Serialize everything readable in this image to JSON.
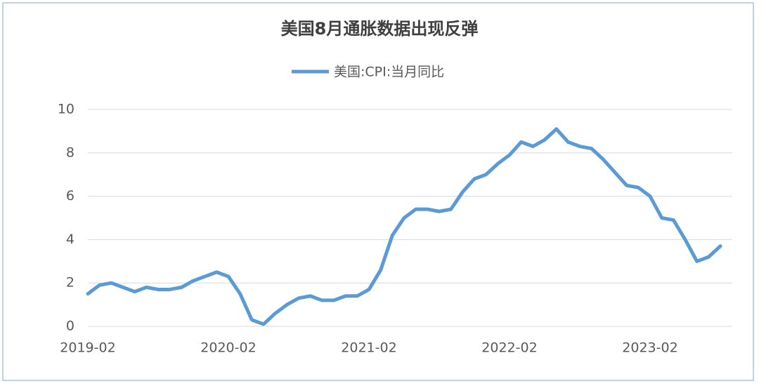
{
  "chart_data": {
    "type": "line",
    "title": "美国8月通胀数据出现反弹",
    "categories": [
      "2019-02",
      null,
      null,
      null,
      null,
      null,
      null,
      null,
      null,
      null,
      null,
      null,
      "2020-02",
      null,
      null,
      null,
      null,
      null,
      null,
      null,
      null,
      null,
      null,
      null,
      "2021-02",
      null,
      null,
      null,
      null,
      null,
      null,
      null,
      null,
      null,
      null,
      null,
      "2022-02",
      null,
      null,
      null,
      null,
      null,
      null,
      null,
      null,
      null,
      null,
      null,
      "2023-02",
      null,
      null,
      null,
      null,
      null,
      null
    ],
    "series": [
      {
        "name": "美国:CPI:当月同比",
        "color": "#5b9bd5",
        "values": [
          1.5,
          1.9,
          2.0,
          1.8,
          1.6,
          1.8,
          1.7,
          1.7,
          1.8,
          2.1,
          2.3,
          2.5,
          2.3,
          1.5,
          0.3,
          0.1,
          0.6,
          1.0,
          1.3,
          1.4,
          1.2,
          1.2,
          1.4,
          1.4,
          1.7,
          2.6,
          4.2,
          5.0,
          5.4,
          5.4,
          5.3,
          5.4,
          6.2,
          6.8,
          7.0,
          7.5,
          7.9,
          8.5,
          8.3,
          8.6,
          9.1,
          8.5,
          8.3,
          8.2,
          7.7,
          7.1,
          6.5,
          6.4,
          6.0,
          5.0,
          4.9,
          4.0,
          3.0,
          3.2,
          3.7
        ]
      }
    ],
    "ylim": [
      0,
      10
    ],
    "yticks": [
      0,
      2,
      4,
      6,
      8,
      10
    ],
    "grid": true,
    "legend": "top"
  }
}
